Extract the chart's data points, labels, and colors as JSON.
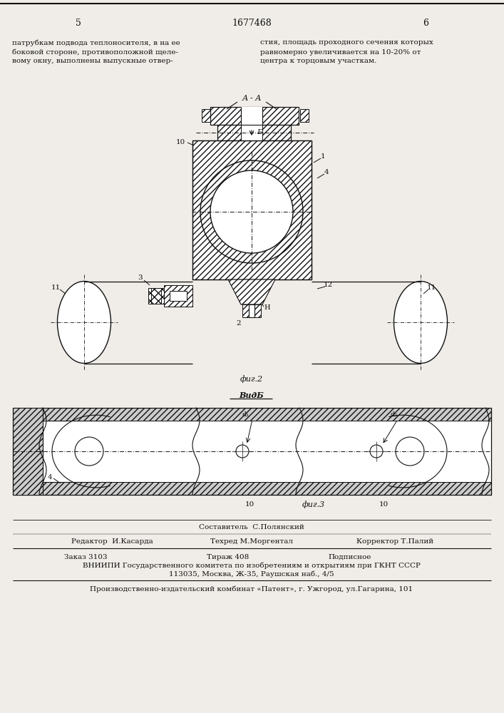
{
  "page_number_left": "5",
  "page_number_center": "1677468",
  "page_number_right": "6",
  "text_left_lines": [
    "патрубкам подвода теплоносителя, в на ее",
    "боковой стороне, противоположной щеле-",
    "вому окну, выполнены выпускные отвер-"
  ],
  "text_right_lines": [
    "стия, площадь проходного сечения которых",
    "равномерно увеличивается на 10-20% от",
    "центра к торцовым участкам."
  ],
  "fig2_label": "фиг.2",
  "fig3_label": "фиг.3",
  "vidb_label": "ВидБ",
  "section_label": "А - А",
  "b_label": "Б",
  "label_1": "1",
  "label_2": "2",
  "label_3": "3",
  "label_4": "4",
  "label_10": "10",
  "label_11": "11",
  "label_12": "12",
  "label_H": "H",
  "label_d1": "d₁",
  "label_d2": "d₂",
  "footer_comp": "Составитель  С.Полянский",
  "footer_ed": "Редактор  И.Касарда",
  "footer_tech": "Техред М.Моргентал",
  "footer_corr": "Корректор Т.Палий",
  "footer_order": "Заказ 3103",
  "footer_tiraж": "Тираж 408",
  "footer_podp": "Подписное",
  "footer_vniip": "ВНИИПИ Государственного комитета по изобретениям и открытиям при ГКНТ СССР",
  "footer_addr": "113035, Москва, Ж-35, Раушская наб., 4/5",
  "footer_prod": "Производственно-издательский комбинат «Патент», г. Ужгород, ул.Гагарина, 101",
  "bg_color": "#f0ede8",
  "line_color": "#111111"
}
